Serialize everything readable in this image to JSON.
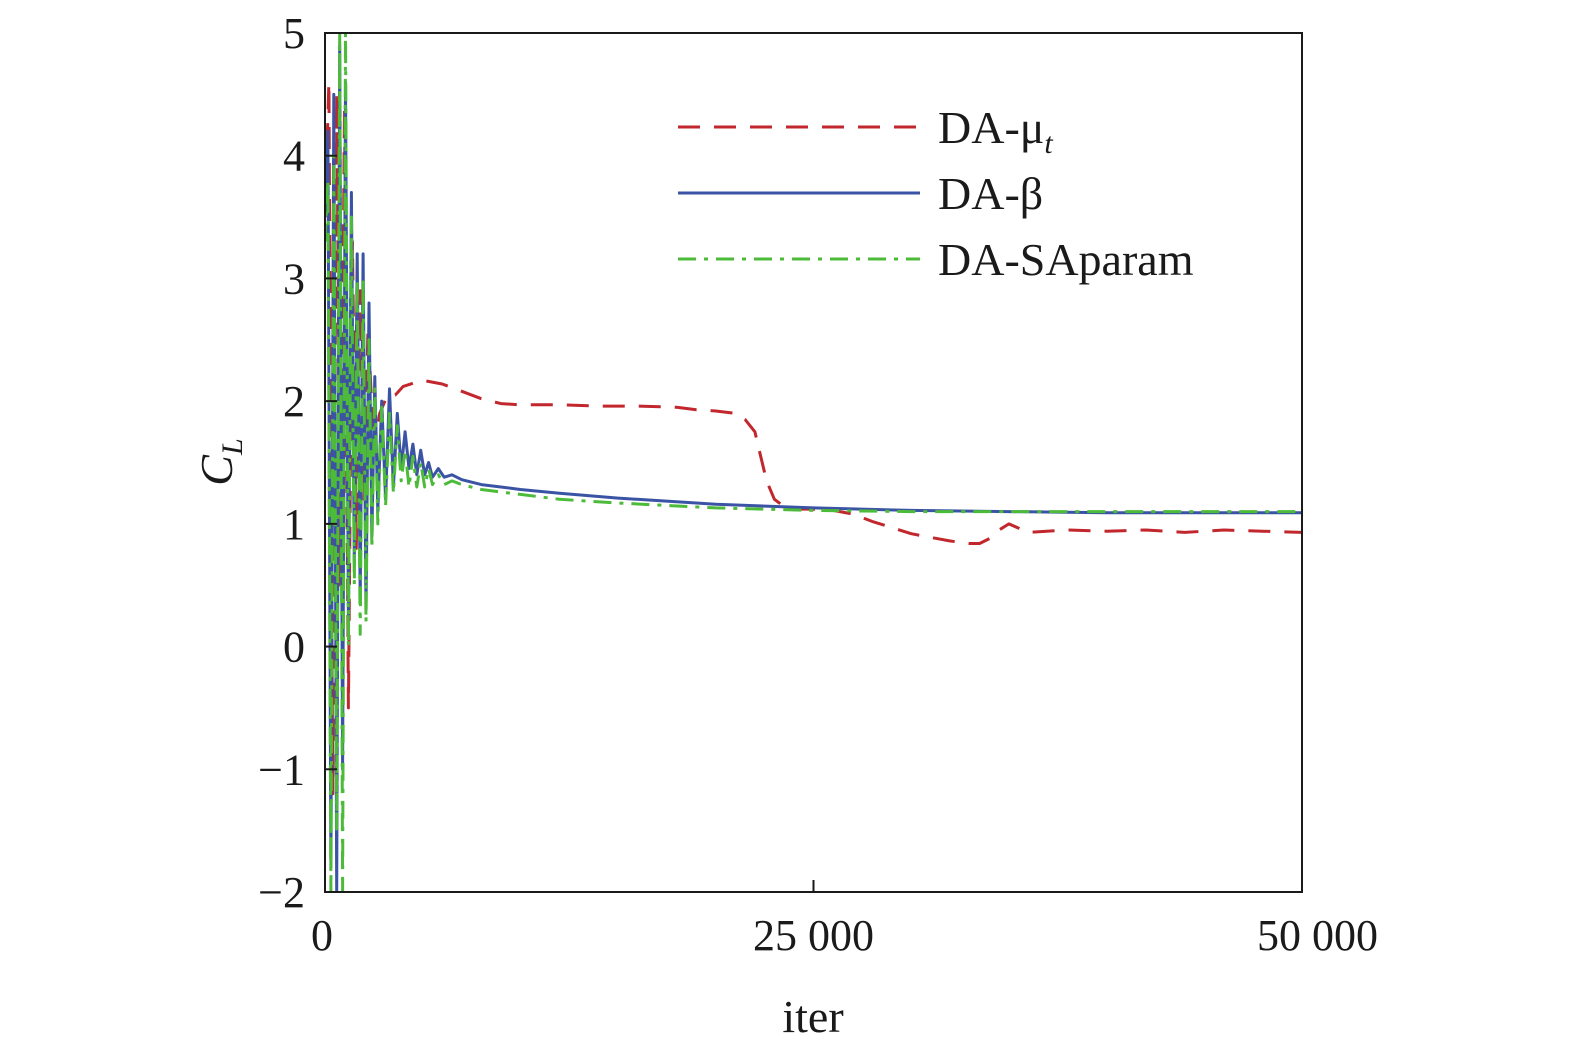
{
  "chart_data": {
    "type": "line",
    "xlabel": "iter",
    "ylabel": {
      "main": "C",
      "sub": "L"
    },
    "xlim": [
      0,
      50000
    ],
    "ylim": [
      -2,
      5
    ],
    "x_ticks": [
      0,
      25000,
      50000
    ],
    "x_tick_labels": [
      "0",
      "25 000",
      "50 000"
    ],
    "y_ticks": [
      -2,
      -1,
      0,
      1,
      2,
      3,
      4,
      5
    ],
    "y_tick_labels": [
      "−2",
      "−1",
      "0",
      "1",
      "2",
      "3",
      "4",
      "5"
    ],
    "grid": false,
    "legend_position": "top-right",
    "series": [
      {
        "name": "DA-μt",
        "name_main": "DA-μ",
        "name_sub": "t",
        "color": "#c1272d",
        "dash": "dashed",
        "x": [
          0,
          200,
          400,
          600,
          800,
          1000,
          1200,
          1400,
          1600,
          1800,
          2000,
          2200,
          2500,
          2800,
          3200,
          3600,
          4000,
          5000,
          6000,
          7000,
          8000,
          9000,
          10000,
          12000,
          14000,
          16000,
          18000,
          19000,
          20000,
          21000,
          21500,
          22000,
          22300,
          22600,
          23000,
          23500,
          24000,
          25000,
          26000,
          27000,
          28000,
          29000,
          30000,
          31000,
          32000,
          33000,
          33500,
          34000,
          34500,
          35000,
          36000,
          38000,
          40000,
          42000,
          44000,
          46000,
          48000,
          50000
        ],
        "y": [
          3.5,
          4.6,
          -1.2,
          4.5,
          0.5,
          4.4,
          -0.5,
          3.3,
          0.8,
          2.9,
          1.2,
          2.6,
          1.6,
          1.9,
          2.05,
          2.05,
          2.12,
          2.17,
          2.14,
          2.08,
          2.02,
          1.98,
          1.97,
          1.97,
          1.96,
          1.96,
          1.95,
          1.93,
          1.92,
          1.9,
          1.85,
          1.75,
          1.55,
          1.35,
          1.2,
          1.14,
          1.12,
          1.12,
          1.11,
          1.08,
          1.02,
          0.97,
          0.92,
          0.89,
          0.86,
          0.84,
          0.84,
          0.88,
          0.95,
          1.0,
          0.93,
          0.95,
          0.94,
          0.95,
          0.93,
          0.95,
          0.94,
          0.93
        ]
      },
      {
        "name": "DA-β",
        "name_main": "DA-β",
        "name_sub": "",
        "color": "#3a53a4",
        "dash": "solid",
        "x": [
          0,
          150,
          300,
          450,
          600,
          750,
          900,
          1050,
          1200,
          1350,
          1500,
          1650,
          1800,
          1950,
          2100,
          2250,
          2400,
          2550,
          2700,
          2900,
          3100,
          3300,
          3500,
          3700,
          3900,
          4100,
          4300,
          4500,
          4700,
          4900,
          5100,
          5300,
          5500,
          5800,
          6100,
          6500,
          7000,
          8000,
          9000,
          10000,
          12000,
          15000,
          20000,
          25000,
          30000,
          35000,
          40000,
          45000,
          50000
        ],
        "y": [
          3.5,
          4.2,
          -1.8,
          4.5,
          -2.0,
          4.9,
          -1.0,
          4.6,
          0.2,
          3.7,
          0.7,
          3.2,
          0.4,
          3.2,
          0.3,
          2.8,
          0.9,
          2.2,
          1.1,
          2.0,
          1.2,
          2.1,
          1.3,
          1.9,
          1.45,
          1.75,
          1.45,
          1.65,
          1.4,
          1.6,
          1.4,
          1.5,
          1.38,
          1.45,
          1.38,
          1.4,
          1.36,
          1.32,
          1.3,
          1.28,
          1.25,
          1.21,
          1.16,
          1.13,
          1.11,
          1.1,
          1.09,
          1.09,
          1.09
        ]
      },
      {
        "name": "DA-SAparam",
        "name_main": "DA-SAparam",
        "name_sub": "",
        "color": "#4dbb3a",
        "dash": "dashdot",
        "x": [
          0,
          150,
          300,
          450,
          600,
          750,
          900,
          1050,
          1200,
          1350,
          1500,
          1650,
          1800,
          1950,
          2100,
          2250,
          2400,
          2550,
          2700,
          2900,
          3100,
          3300,
          3500,
          3700,
          3900,
          4100,
          4300,
          4500,
          4700,
          4900,
          5100,
          5300,
          5500,
          5800,
          6100,
          6500,
          7000,
          8000,
          9000,
          10000,
          12000,
          15000,
          20000,
          25000,
          30000,
          35000,
          40000,
          45000,
          50000
        ],
        "y": [
          3.3,
          3.8,
          -2.0,
          4.0,
          -1.5,
          5.0,
          -2.0,
          5.0,
          0.0,
          3.5,
          0.5,
          3.0,
          0.1,
          3.0,
          0.2,
          2.5,
          0.8,
          2.1,
          1.0,
          1.95,
          1.15,
          1.9,
          1.25,
          1.8,
          1.35,
          1.6,
          1.3,
          1.55,
          1.3,
          1.5,
          1.3,
          1.45,
          1.32,
          1.4,
          1.32,
          1.35,
          1.32,
          1.28,
          1.26,
          1.24,
          1.2,
          1.17,
          1.13,
          1.11,
          1.1,
          1.1,
          1.1,
          1.1,
          1.1
        ]
      }
    ]
  }
}
